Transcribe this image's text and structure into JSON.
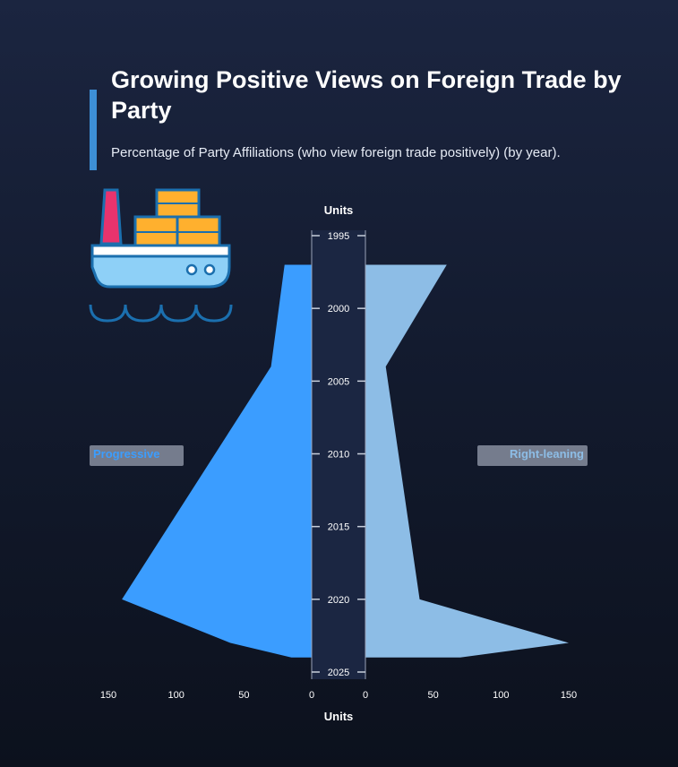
{
  "title": "Growing Positive Views on Foreign Trade by Party",
  "subtitle": "Percentage of Party Affiliations (who view foreign trade positively) (by year).",
  "icon": "cargo-ship-icon",
  "colors": {
    "left": "#3b9dff",
    "right": "#8dbde6",
    "center": "#1b2642",
    "accent": "#3d8fd6"
  },
  "chart_data": {
    "type": "area",
    "orientation": "butterfly",
    "title": "Growing Positive Views on Foreign Trade by Party",
    "subtitle": "Percentage of Party Affiliations (who view foreign trade positively) (by year).",
    "x": [
      1997,
      2004,
      2020,
      2023,
      2024
    ],
    "series": [
      {
        "name": "Progressive",
        "values": [
          20,
          30,
          140,
          60,
          15
        ]
      },
      {
        "name": "Right-leaning",
        "values": [
          60,
          15,
          40,
          150,
          70
        ]
      }
    ],
    "year_axis": {
      "label": "Units",
      "ticks": [
        1995,
        2000,
        2005,
        2010,
        2015,
        2020,
        2025
      ],
      "range": [
        1995,
        2025
      ]
    },
    "value_axis": {
      "label": "Units",
      "ticks": [
        0,
        50,
        100,
        150
      ],
      "range": [
        0,
        150
      ]
    },
    "legend": [
      {
        "label": "Progressive",
        "position": "left"
      },
      {
        "label": "Right-leaning",
        "position": "right"
      }
    ]
  }
}
